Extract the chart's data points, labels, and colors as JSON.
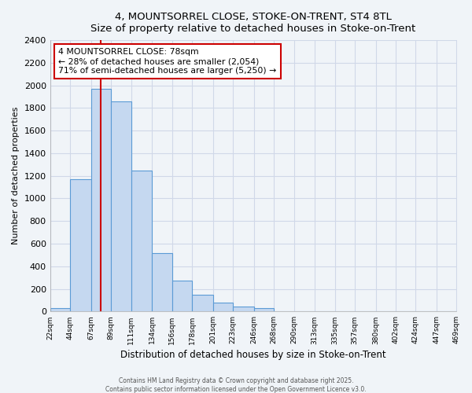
{
  "title": "4, MOUNTSORREL CLOSE, STOKE-ON-TRENT, ST4 8TL",
  "subtitle": "Size of property relative to detached houses in Stoke-on-Trent",
  "xlabel": "Distribution of detached houses by size in Stoke-on-Trent",
  "ylabel": "Number of detached properties",
  "bar_edges": [
    22,
    44,
    67,
    89,
    111,
    134,
    156,
    178,
    201,
    223,
    246,
    268,
    290,
    313,
    335,
    357,
    380,
    402,
    424,
    447,
    469
  ],
  "bar_heights": [
    30,
    1170,
    1970,
    1860,
    1250,
    520,
    270,
    145,
    80,
    45,
    30,
    5,
    2,
    1,
    0,
    0,
    0,
    0,
    0,
    0
  ],
  "bar_color": "#c5d8f0",
  "bar_edge_color": "#5b9bd5",
  "property_size": 78,
  "annotation_line1": "4 MOUNTSORREL CLOSE: 78sqm",
  "annotation_line2": "← 28% of detached houses are smaller (2,054)",
  "annotation_line3": "71% of semi-detached houses are larger (5,250) →",
  "annotation_box_color": "#ffffff",
  "annotation_box_edgecolor": "#cc0000",
  "vline_color": "#cc0000",
  "ylim": [
    0,
    2400
  ],
  "xlim": [
    22,
    469
  ],
  "tick_labels": [
    "22sqm",
    "44sqm",
    "67sqm",
    "89sqm",
    "111sqm",
    "134sqm",
    "156sqm",
    "178sqm",
    "201sqm",
    "223sqm",
    "246sqm",
    "268sqm",
    "290sqm",
    "313sqm",
    "335sqm",
    "357sqm",
    "380sqm",
    "402sqm",
    "424sqm",
    "447sqm",
    "469sqm"
  ],
  "footer1": "Contains HM Land Registry data © Crown copyright and database right 2025.",
  "footer2": "Contains public sector information licensed under the Open Government Licence v3.0.",
  "bg_color": "#f0f4f8",
  "grid_color": "#d0d8e8",
  "yticks": [
    0,
    200,
    400,
    600,
    800,
    1000,
    1200,
    1400,
    1600,
    1800,
    2000,
    2200,
    2400
  ]
}
